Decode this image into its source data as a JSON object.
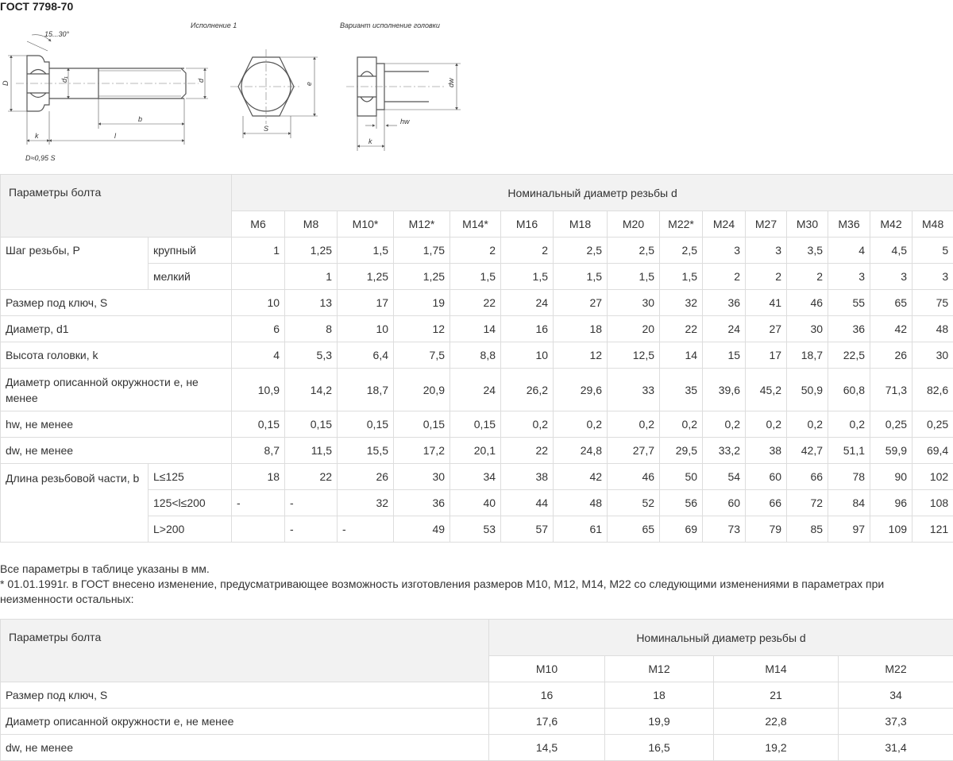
{
  "title": "ГОСТ 7798-70",
  "drawing": {
    "caption_main": "Исполнение 1",
    "caption_variant": "Вариант исполнение головки",
    "angle": "15...30°",
    "labels": {
      "D": "D",
      "d1": "d₁",
      "d": "d",
      "b": "b",
      "l": "l",
      "k": "k",
      "D_formula": "D≈0,95 S",
      "e": "e",
      "S": "S",
      "dw": "dw",
      "hw": "hw",
      "k2": "k"
    }
  },
  "table1": {
    "param_header": "Параметры болта",
    "diam_header": "Номинальный диаметр резьбы d",
    "sizes": [
      "M6",
      "M8",
      "M10*",
      "M12*",
      "M14*",
      "M16",
      "M18",
      "M20",
      "M22*",
      "M24",
      "M27",
      "M30",
      "M36",
      "M42",
      "M48"
    ],
    "pitch": {
      "label": "Шаг резьбы, P",
      "coarse": {
        "label": "крупный",
        "values": [
          "1",
          "1,25",
          "1,5",
          "1,75",
          "2",
          "2",
          "2,5",
          "2,5",
          "2,5",
          "3",
          "3",
          "3,5",
          "4",
          "4,5",
          "5"
        ]
      },
      "fine": {
        "label": "мелкий",
        "values": [
          "",
          "1",
          "1,25",
          "1,25",
          "1,5",
          "1,5",
          "1,5",
          "1,5",
          "1,5",
          "2",
          "2",
          "2",
          "3",
          "3",
          "3"
        ]
      }
    },
    "rows": [
      {
        "label": "Размер под ключ, S",
        "values": [
          "10",
          "13",
          "17",
          "19",
          "22",
          "24",
          "27",
          "30",
          "32",
          "36",
          "41",
          "46",
          "55",
          "65",
          "75"
        ]
      },
      {
        "label": "Диаметр, d1",
        "values": [
          "6",
          "8",
          "10",
          "12",
          "14",
          "16",
          "18",
          "20",
          "22",
          "24",
          "27",
          "30",
          "36",
          "42",
          "48"
        ]
      },
      {
        "label": "Высота головки, k",
        "values": [
          "4",
          "5,3",
          "6,4",
          "7,5",
          "8,8",
          "10",
          "12",
          "12,5",
          "14",
          "15",
          "17",
          "18,7",
          "22,5",
          "26",
          "30"
        ]
      },
      {
        "label": "Диаметр описанной окружности e, не менее",
        "values": [
          "10,9",
          "14,2",
          "18,7",
          "20,9",
          "24",
          "26,2",
          "29,6",
          "33",
          "35",
          "39,6",
          "45,2",
          "50,9",
          "60,8",
          "71,3",
          "82,6"
        ]
      },
      {
        "label": "hw, не менее",
        "values": [
          "0,15",
          "0,15",
          "0,15",
          "0,15",
          "0,15",
          "0,2",
          "0,2",
          "0,2",
          "0,2",
          "0,2",
          "0,2",
          "0,2",
          "0,2",
          "0,25",
          "0,25"
        ]
      },
      {
        "label": "dw, не менее",
        "values": [
          "8,7",
          "11,5",
          "15,5",
          "17,2",
          "20,1",
          "22",
          "24,8",
          "27,7",
          "29,5",
          "33,2",
          "38",
          "42,7",
          "51,1",
          "59,9",
          "69,4"
        ]
      }
    ],
    "thread_length": {
      "label": "Длина резьбовой части, b",
      "r1": {
        "label": "L≤125",
        "values": [
          "18",
          "22",
          "26",
          "30",
          "34",
          "38",
          "42",
          "46",
          "50",
          "54",
          "60",
          "66",
          "78",
          "90",
          "102"
        ]
      },
      "r2": {
        "label": "125<l≤200",
        "values": [
          "-",
          "-",
          "32",
          "36",
          "40",
          "44",
          "48",
          "52",
          "56",
          "60",
          "66",
          "72",
          "84",
          "96",
          "108"
        ]
      },
      "r3": {
        "label": "L>200",
        "values": [
          "",
          "-",
          "-",
          "49",
          "53",
          "57",
          "61",
          "65",
          "69",
          "73",
          "79",
          "85",
          "97",
          "109",
          "121"
        ]
      }
    }
  },
  "notes": {
    "line1": "Все параметры в таблице указаны в мм.",
    "line2": "* 01.01.1991г. в ГОСТ внесено изменение, предусматривающее возможность изготовления размеров M10, M12, M14, M22 со следующими изменениями в параметрах при неизменности остальных:"
  },
  "table2": {
    "param_header": "Параметры болта",
    "diam_header": "Номинальный диаметр резьбы d",
    "sizes": [
      "M10",
      "M12",
      "M14",
      "M22"
    ],
    "rows": [
      {
        "label": "Размер под ключ, S",
        "values": [
          "16",
          "18",
          "21",
          "34"
        ]
      },
      {
        "label": "Диаметр описанной окружности e, не менее",
        "values": [
          "17,6",
          "19,9",
          "22,8",
          "37,3"
        ]
      },
      {
        "label": "dw, не менее",
        "values": [
          "14,5",
          "16,5",
          "19,2",
          "31,4"
        ]
      }
    ]
  }
}
